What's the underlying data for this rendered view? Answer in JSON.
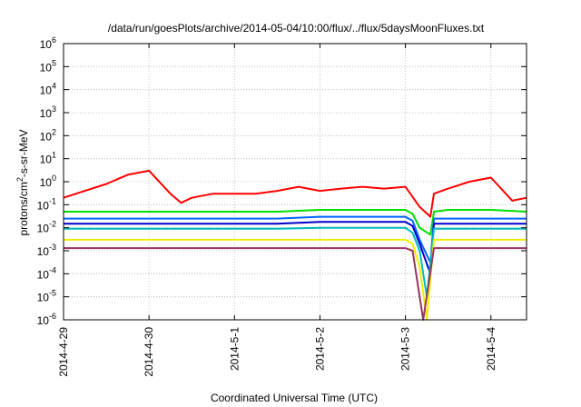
{
  "chart_data": {
    "type": "line",
    "title": "/data/run/goesPlots/archive/2014-05-04/10:00/flux/../flux/5daysMoonFluxes.txt",
    "xlabel": "Coordinated Universal Time (UTC)",
    "ylabel": {
      "prefix": "protons/cm",
      "sup": "2",
      "suffix": "-s-sr-MeV"
    },
    "y_scale": "log",
    "ylim": [
      1e-06,
      1000000.0
    ],
    "xlim": [
      "2014-04-29T00:00",
      "2014-05-04T10:00"
    ],
    "grid": true,
    "legend": "none",
    "x_ticks": [
      {
        "label": "2014-4-29",
        "time": "2014-04-29T00:00"
      },
      {
        "label": "2014-4-30",
        "time": "2014-04-30T00:00"
      },
      {
        "label": "2014-5-1",
        "time": "2014-05-01T00:00"
      },
      {
        "label": "2014-5-2",
        "time": "2014-05-02T00:00"
      },
      {
        "label": "2014-5-3",
        "time": "2014-05-03T00:00"
      },
      {
        "label": "2014-5-4",
        "time": "2014-05-04T00:00"
      }
    ],
    "y_ticks": [
      {
        "base": "10",
        "exp": "-6",
        "value": 1e-06
      },
      {
        "base": "10",
        "exp": "-5",
        "value": 1e-05
      },
      {
        "base": "10",
        "exp": "-4",
        "value": 0.0001
      },
      {
        "base": "10",
        "exp": "-3",
        "value": 0.001
      },
      {
        "base": "10",
        "exp": "-2",
        "value": 0.01
      },
      {
        "base": "10",
        "exp": "-1",
        "value": 0.1
      },
      {
        "base": "10",
        "exp": "0",
        "value": 1
      },
      {
        "base": "10",
        "exp": "1",
        "value": 10
      },
      {
        "base": "10",
        "exp": "2",
        "value": 100
      },
      {
        "base": "10",
        "exp": "3",
        "value": 1000
      },
      {
        "base": "10",
        "exp": "4",
        "value": 10000
      },
      {
        "base": "10",
        "exp": "5",
        "value": 100000
      },
      {
        "base": "10",
        "exp": "6",
        "value": 1000000
      }
    ],
    "series": [
      {
        "color": "#ff0000",
        "x": [
          "2014-04-29T00:00",
          "2014-04-29T06:00",
          "2014-04-29T12:00",
          "2014-04-29T18:00",
          "2014-04-30T00:00",
          "2014-04-30T06:00",
          "2014-04-30T09:00",
          "2014-04-30T12:00",
          "2014-04-30T18:00",
          "2014-05-01T00:00",
          "2014-05-01T06:00",
          "2014-05-01T12:00",
          "2014-05-01T18:00",
          "2014-05-02T00:00",
          "2014-05-02T06:00",
          "2014-05-02T12:00",
          "2014-05-02T18:00",
          "2014-05-03T00:00",
          "2014-05-03T04:00",
          "2014-05-03T07:00",
          "2014-05-03T08:00",
          "2014-05-03T12:00",
          "2014-05-03T18:00",
          "2014-05-04T00:00",
          "2014-05-04T06:00",
          "2014-05-04T10:00"
        ],
        "y": [
          0.2,
          0.4,
          0.8,
          2,
          3,
          0.3,
          0.12,
          0.2,
          0.3,
          0.3,
          0.3,
          0.4,
          0.6,
          0.4,
          0.5,
          0.6,
          0.5,
          0.6,
          0.08,
          0.03,
          0.3,
          0.5,
          1,
          1.5,
          0.15,
          0.2
        ]
      },
      {
        "color": "#00dd00",
        "x": [
          "2014-04-29T00:00",
          "2014-04-29T12:00",
          "2014-04-30T00:00",
          "2014-04-30T12:00",
          "2014-05-01T00:00",
          "2014-05-01T12:00",
          "2014-05-02T00:00",
          "2014-05-02T12:00",
          "2014-05-03T00:00",
          "2014-05-03T02:00",
          "2014-05-03T04:00",
          "2014-05-03T07:00",
          "2014-05-03T08:00",
          "2014-05-03T12:00",
          "2014-05-04T00:00",
          "2014-05-04T10:00"
        ],
        "y": [
          0.05,
          0.05,
          0.05,
          0.05,
          0.05,
          0.05,
          0.06,
          0.06,
          0.06,
          0.04,
          0.01,
          0.005,
          0.05,
          0.06,
          0.06,
          0.05
        ]
      },
      {
        "color": "#0066ff",
        "x": [
          "2014-04-29T00:00",
          "2014-04-29T12:00",
          "2014-04-30T00:00",
          "2014-04-30T12:00",
          "2014-05-01T00:00",
          "2014-05-01T12:00",
          "2014-05-02T00:00",
          "2014-05-02T12:00",
          "2014-05-03T00:00",
          "2014-05-03T02:00",
          "2014-05-03T04:00",
          "2014-05-03T07:00",
          "2014-05-03T08:00",
          "2014-05-03T12:00",
          "2014-05-04T00:00",
          "2014-05-04T10:00"
        ],
        "y": [
          0.025,
          0.025,
          0.025,
          0.025,
          0.025,
          0.025,
          0.03,
          0.03,
          0.03,
          0.02,
          0.003,
          0.0003,
          0.025,
          0.025,
          0.025,
          0.025
        ]
      },
      {
        "color": "#0000cc",
        "x": [
          "2014-04-29T00:00",
          "2014-04-29T12:00",
          "2014-04-30T00:00",
          "2014-04-30T12:00",
          "2014-05-01T00:00",
          "2014-05-01T12:00",
          "2014-05-02T00:00",
          "2014-05-02T12:00",
          "2014-05-03T00:00",
          "2014-05-03T02:00",
          "2014-05-03T04:00",
          "2014-05-03T07:00",
          "2014-05-03T08:00",
          "2014-05-03T12:00",
          "2014-05-04T00:00",
          "2014-05-04T10:00"
        ],
        "y": [
          0.015,
          0.015,
          0.015,
          0.015,
          0.015,
          0.015,
          0.018,
          0.018,
          0.018,
          0.012,
          0.002,
          0.0001,
          0.015,
          0.015,
          0.015,
          0.015
        ]
      },
      {
        "color": "#00bbbb",
        "x": [
          "2014-04-29T00:00",
          "2014-04-29T12:00",
          "2014-04-30T00:00",
          "2014-04-30T12:00",
          "2014-05-01T00:00",
          "2014-05-01T12:00",
          "2014-05-02T00:00",
          "2014-05-02T12:00",
          "2014-05-03T00:00",
          "2014-05-03T02:00",
          "2014-05-03T04:00",
          "2014-05-03T06:00",
          "2014-05-03T08:00",
          "2014-05-03T12:00",
          "2014-05-04T00:00",
          "2014-05-04T10:00"
        ],
        "y": [
          0.009,
          0.009,
          0.009,
          0.009,
          0.009,
          0.009,
          0.01,
          0.01,
          0.01,
          0.006,
          0.001,
          1e-05,
          0.009,
          0.009,
          0.009,
          0.009
        ]
      },
      {
        "color": "#eeee00",
        "x": [
          "2014-04-29T00:00",
          "2014-04-29T12:00",
          "2014-04-30T00:00",
          "2014-04-30T12:00",
          "2014-05-01T00:00",
          "2014-05-01T12:00",
          "2014-05-02T00:00",
          "2014-05-02T12:00",
          "2014-05-03T00:00",
          "2014-05-03T02:00",
          "2014-05-03T04:00",
          "2014-05-03T06:00",
          "2014-05-03T08:00",
          "2014-05-03T12:00",
          "2014-05-04T00:00",
          "2014-05-04T10:00"
        ],
        "y": [
          0.003,
          0.003,
          0.003,
          0.003,
          0.003,
          0.003,
          0.003,
          0.003,
          0.003,
          0.002,
          0.0002,
          1e-06,
          0.003,
          0.003,
          0.003,
          0.003
        ]
      },
      {
        "color": "#993366",
        "x": [
          "2014-04-29T00:00",
          "2014-04-29T12:00",
          "2014-04-30T00:00",
          "2014-04-30T12:00",
          "2014-05-01T00:00",
          "2014-05-01T12:00",
          "2014-05-02T00:00",
          "2014-05-02T12:00",
          "2014-05-03T00:00",
          "2014-05-03T02:00",
          "2014-05-03T04:00",
          "2014-05-03T05:00",
          "2014-05-03T08:00",
          "2014-05-03T12:00",
          "2014-05-04T00:00",
          "2014-05-04T10:00"
        ],
        "y": [
          0.0013,
          0.0013,
          0.0013,
          0.0013,
          0.0013,
          0.0013,
          0.0013,
          0.0013,
          0.0013,
          0.001,
          1e-05,
          1e-06,
          0.0013,
          0.0013,
          0.0013,
          0.0013
        ]
      }
    ]
  }
}
